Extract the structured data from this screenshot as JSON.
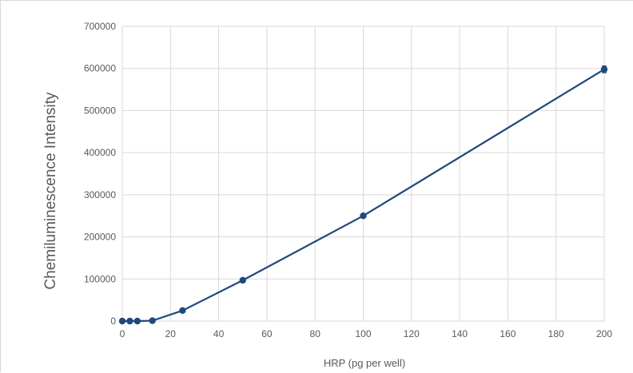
{
  "chart_data": {
    "type": "line",
    "title": "",
    "xlabel": "HRP (pg per well)",
    "ylabel": "Chemiluminescence Intensity",
    "xlim": [
      0,
      200
    ],
    "ylim": [
      0,
      700000
    ],
    "xticks": [
      0,
      20,
      40,
      60,
      80,
      100,
      120,
      140,
      160,
      180,
      200
    ],
    "yticks": [
      0,
      100000,
      200000,
      300000,
      400000,
      500000,
      600000,
      700000
    ],
    "grid": true,
    "legend": "none",
    "series": [
      {
        "color": "#1f497d",
        "x": [
          0,
          3.125,
          6.25,
          12.5,
          25,
          50,
          100,
          200
        ],
        "y": [
          0,
          0,
          0,
          1000,
          25000,
          97000,
          250000,
          598000
        ],
        "error": [
          0,
          0,
          0,
          0,
          1500,
          2500,
          3000,
          8000
        ]
      }
    ]
  }
}
